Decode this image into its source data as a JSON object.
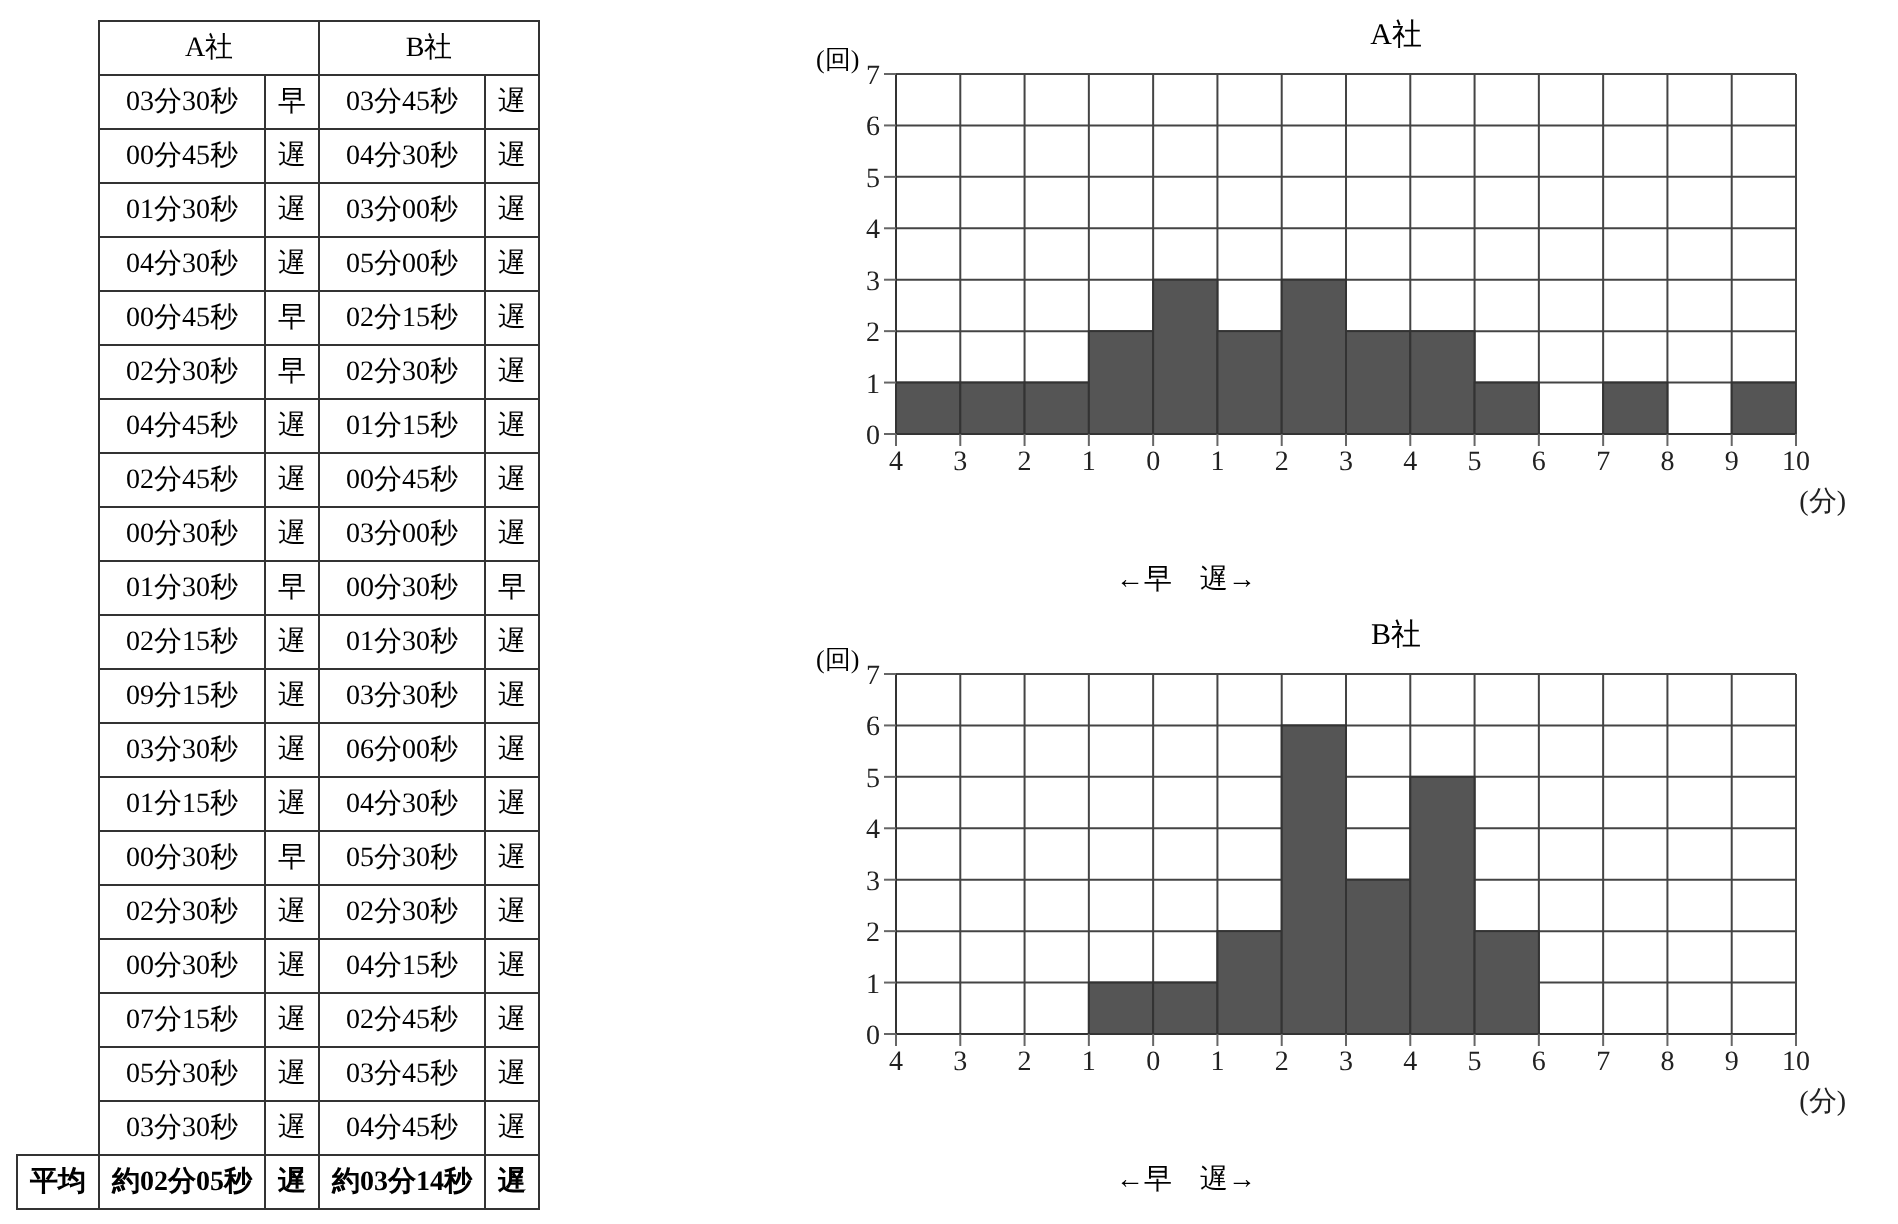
{
  "chart_data": [
    {
      "type": "other",
      "categories": [
        "A社",
        "B社"
      ],
      "cell_labels": [
        [
          null,
          "03分30秒",
          "早",
          "03分45秒",
          "遅"
        ],
        [
          null,
          "00分45秒",
          "遅",
          "04分30秒",
          "遅"
        ],
        [
          null,
          "01分30秒",
          "遅",
          "03分00秒",
          "遅"
        ],
        [
          null,
          "04分30秒",
          "遅",
          "05分00秒",
          "遅"
        ],
        [
          null,
          "00分45秒",
          "早",
          "02分15秒",
          "遅"
        ],
        [
          null,
          "02分30秒",
          "早",
          "02分30秒",
          "遅"
        ],
        [
          null,
          "04分45秒",
          "遅",
          "01分15秒",
          "遅"
        ],
        [
          null,
          "02分45秒",
          "遅",
          "00分45秒",
          "遅"
        ],
        [
          null,
          "00分30秒",
          "遅",
          "03分00秒",
          "遅"
        ],
        [
          null,
          "01分30秒",
          "早",
          "00分30秒",
          "早"
        ],
        [
          null,
          "02分15秒",
          "遅",
          "01分30秒",
          "遅"
        ],
        [
          null,
          "09分15秒",
          "遅",
          "03分30秒",
          "遅"
        ],
        [
          null,
          "03分30秒",
          "遅",
          "06分00秒",
          "遅"
        ],
        [
          null,
          "01分15秒",
          "遅",
          "04分30秒",
          "遅"
        ],
        [
          null,
          "00分30秒",
          "早",
          "05分30秒",
          "遅"
        ],
        [
          null,
          "02分30秒",
          "遅",
          "02分30秒",
          "遅"
        ],
        [
          null,
          "00分30秒",
          "遅",
          "04分15秒",
          "遅"
        ],
        [
          null,
          "07分15秒",
          "遅",
          "02分45秒",
          "遅"
        ],
        [
          null,
          "05分30秒",
          "遅",
          "03分45秒",
          "遅"
        ],
        [
          null,
          "03分30秒",
          "遅",
          "04分45秒",
          "遅"
        ],
        [
          "平均",
          "約02分05秒",
          "遅",
          "約03分14秒",
          "遅"
        ]
      ]
    },
    {
      "type": "histogram",
      "title": "A社",
      "ylabel": "(回)",
      "xlabel": "(分)",
      "annotations": [
        "←早　遅→"
      ],
      "bins": [
        -4,
        -3,
        -2,
        -1,
        0,
        1,
        2,
        3,
        4,
        5,
        6,
        7,
        8,
        9,
        10
      ],
      "values": [
        1,
        1,
        1,
        2,
        3,
        2,
        3,
        2,
        2,
        1,
        0,
        1,
        0,
        1
      ],
      "color": "#555555",
      "xlim": [
        -4,
        10
      ],
      "xticks": [
        {
          "value": -4,
          "label": "4"
        },
        {
          "value": -3,
          "label": "3"
        },
        {
          "value": -2,
          "label": "2"
        },
        {
          "value": -1,
          "label": "1"
        },
        0,
        1,
        2,
        3,
        4,
        5,
        6,
        7,
        8,
        9,
        10
      ],
      "ylim": [
        0,
        7
      ],
      "yticks": [
        0,
        1,
        2,
        3,
        4,
        5,
        6,
        7
      ],
      "grid": true
    },
    {
      "type": "histogram",
      "title": "B社",
      "ylabel": "(回)",
      "xlabel": "(分)",
      "annotations": [
        "←早　遅→"
      ],
      "bins": [
        -4,
        -3,
        -2,
        -1,
        0,
        1,
        2,
        3,
        4,
        5,
        6,
        7,
        8,
        9,
        10
      ],
      "values": [
        0,
        0,
        0,
        1,
        1,
        2,
        6,
        3,
        5,
        2,
        0,
        0,
        0,
        0
      ],
      "color": "#555555",
      "xlim": [
        -4,
        10
      ],
      "xticks": [
        {
          "value": -4,
          "label": "4"
        },
        {
          "value": -3,
          "label": "3"
        },
        {
          "value": -2,
          "label": "2"
        },
        {
          "value": -1,
          "label": "1"
        },
        0,
        1,
        2,
        3,
        4,
        5,
        6,
        7,
        8,
        9,
        10
      ],
      "ylim": [
        0,
        7
      ],
      "yticks": [
        0,
        1,
        2,
        3,
        4,
        5,
        6,
        7
      ],
      "grid": true
    }
  ]
}
